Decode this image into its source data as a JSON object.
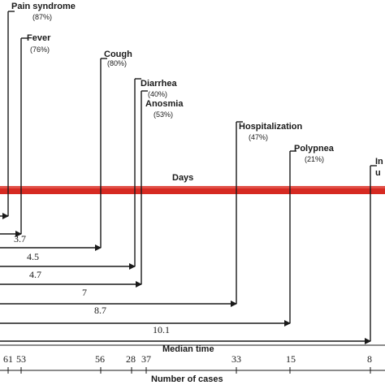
{
  "timeline": {
    "days_label": "Days",
    "median_axis_label": "Median time",
    "cases_axis_label": "Number of cases",
    "band_color": "#d62a22",
    "events": [
      {
        "name": "Pain syndrome",
        "percent": "(87%)",
        "median_time": null,
        "median_label": "",
        "count": "61"
      },
      {
        "name": "Fever",
        "percent": "(76%)",
        "median_time": 3.7,
        "median_label": "3.7",
        "count": "53"
      },
      {
        "name": "Cough",
        "percent": "(80%)",
        "median_time": 4.5,
        "median_label": "4.5",
        "count": "56"
      },
      {
        "name": "Diarrhea",
        "percent": "(40%)",
        "median_time": 4.7,
        "median_label": "4.7",
        "count": "28"
      },
      {
        "name": "Anosmia",
        "percent": "(53%)",
        "median_time": 7,
        "median_label": "7",
        "count": "37"
      },
      {
        "name": "Hospitalization",
        "percent": "(47%)",
        "median_time": 8.7,
        "median_label": "8.7",
        "count": "33"
      },
      {
        "name": "Polypnea",
        "percent": "(21%)",
        "median_time": 10.1,
        "median_label": "10.1",
        "count": "15"
      },
      {
        "name": "In",
        "name_continued": "u",
        "percent": "",
        "median_time": null,
        "median_label": "",
        "count": "8"
      }
    ]
  }
}
